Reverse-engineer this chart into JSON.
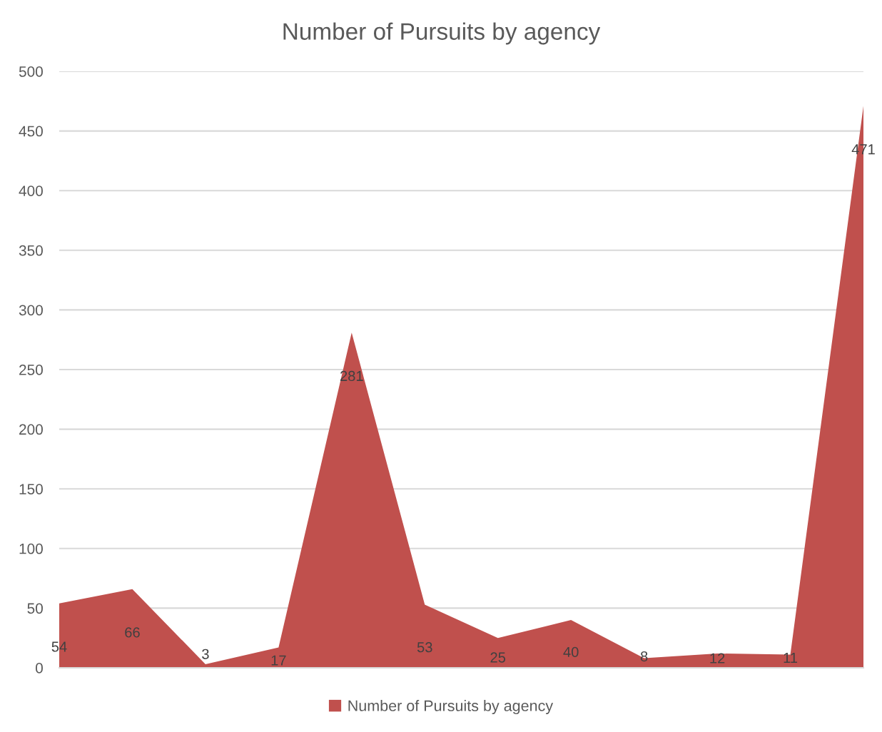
{
  "chart_data": {
    "type": "area",
    "title": "Number of Pursuits by agency",
    "categories": [
      null,
      null,
      null,
      null,
      null,
      null,
      null,
      null,
      null,
      null,
      null,
      null
    ],
    "series": [
      {
        "name": "Number of Pursuits by agency",
        "color": "#c0504d",
        "values": [
          54,
          66,
          3,
          17,
          281,
          53,
          25,
          40,
          8,
          12,
          11,
          471
        ]
      }
    ],
    "ylim": [
      0,
      500
    ],
    "yticks": [
      0,
      50,
      100,
      150,
      200,
      250,
      300,
      350,
      400,
      450,
      500
    ],
    "grid": "y",
    "legend": "bottom",
    "data_labels": true,
    "tick_labels": "y"
  }
}
